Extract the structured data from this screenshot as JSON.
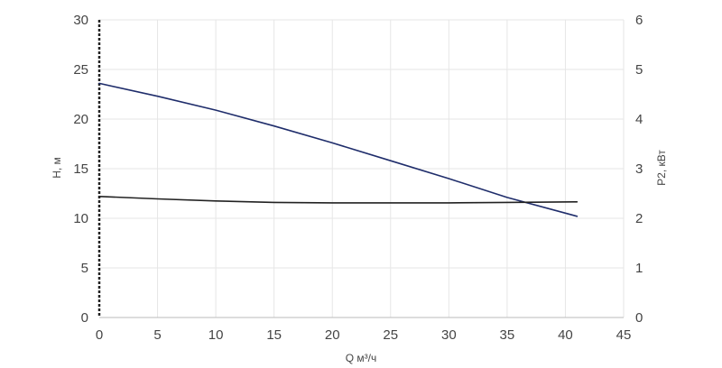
{
  "chart_data": {
    "type": "line",
    "xlabel": "Q м³/ч",
    "ylabel": "H, м",
    "y2label": "P2, кВт",
    "xlim": [
      0,
      45
    ],
    "ylim": [
      0,
      30
    ],
    "y2lim": [
      0,
      6
    ],
    "xticks": [
      0,
      5,
      10,
      15,
      20,
      25,
      30,
      35,
      40,
      45
    ],
    "yticks": [
      0,
      5,
      10,
      15,
      20,
      25,
      30
    ],
    "y2ticks": [
      0,
      1,
      2,
      3,
      4,
      5,
      6
    ],
    "grid": true,
    "series": [
      {
        "axis": "left",
        "color": "#1f2d6b",
        "x": [
          0,
          5,
          10,
          15,
          20,
          25,
          30,
          35,
          41
        ],
        "y": [
          23.6,
          22.3,
          20.9,
          19.3,
          17.6,
          15.8,
          14.0,
          12.1,
          10.2
        ]
      },
      {
        "axis": "right",
        "color": "#222222",
        "x": [
          0,
          5,
          10,
          15,
          20,
          25,
          30,
          35,
          41
        ],
        "y": [
          2.44,
          2.39,
          2.35,
          2.32,
          2.31,
          2.31,
          2.31,
          2.32,
          2.33
        ]
      }
    ]
  }
}
